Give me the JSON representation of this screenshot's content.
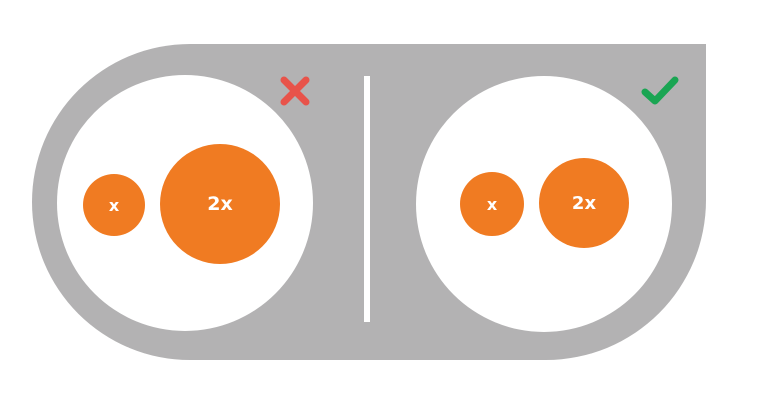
{
  "colors": {
    "background_pill": "#b3b2b3",
    "panel": "#ffffff",
    "circle_fill": "#f07b22",
    "cross": "#e8534a",
    "check": "#1aa553"
  },
  "left_panel": {
    "status_icon": "cross-icon",
    "small_circle_label": "x",
    "large_circle_label": "2x"
  },
  "right_panel": {
    "status_icon": "check-icon",
    "small_circle_label": "x",
    "large_circle_label": "2x"
  }
}
